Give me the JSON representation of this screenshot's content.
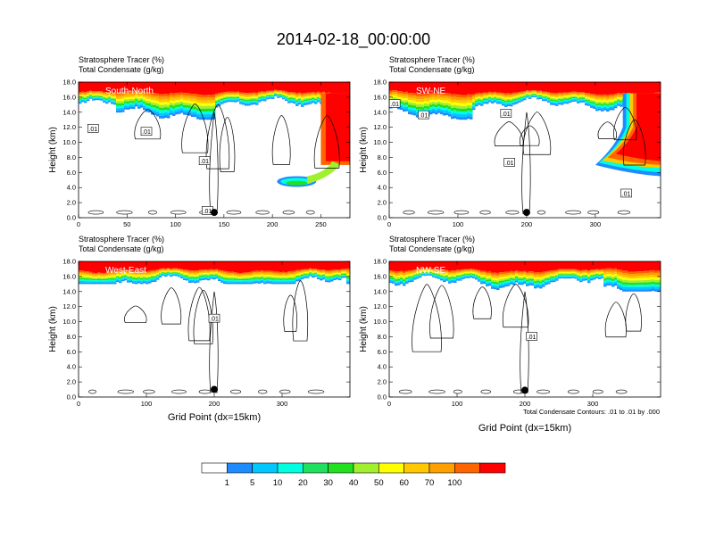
{
  "figure": {
    "title": "2014-02-18_00:00:00",
    "contour_note": "Total Condensate Contours: .01 to .01 by .000",
    "colorbar": {
      "labels": [
        "1",
        "5",
        "10",
        "20",
        "30",
        "40",
        "50",
        "60",
        "70",
        "100"
      ],
      "colors": [
        "#ffffff",
        "#1e8cff",
        "#00c8ff",
        "#00ffe0",
        "#20e060",
        "#20e020",
        "#a0f030",
        "#ffff00",
        "#ffc800",
        "#ffa000",
        "#ff6400",
        "#ff0000"
      ]
    }
  },
  "chart_data": [
    {
      "type": "heatmap",
      "panel_label": "South-North",
      "header_line1": "Stratosphere Tracer   (%)",
      "header_line2": "Total Condensate   (g/kg)",
      "ylabel": "Height (km)",
      "xlabel": "",
      "xlim": [
        0,
        280
      ],
      "ylim": [
        0,
        18
      ],
      "xticks": [
        "0",
        "50",
        "100",
        "150",
        "200",
        "250"
      ],
      "xtick_values": [
        0,
        50,
        100,
        150,
        200,
        250
      ],
      "yticks": [
        "0.0",
        "2.0",
        "4.0",
        "6.0",
        "8.0",
        "10.0",
        "12.0",
        "14.0",
        "16.0",
        "18.0"
      ],
      "marker": {
        "x": 140,
        "y": 0.7
      },
      "contour_labels": [
        {
          "text": ".01",
          "x": 15,
          "y": 11.8
        },
        {
          "text": ".01",
          "x": 70,
          "y": 11.4
        },
        {
          "text": ".01",
          "x": 130,
          "y": 7.5
        },
        {
          "text": ".01",
          "x": 133,
          "y": 0.9
        }
      ],
      "tracer_band": {
        "top": 18,
        "red_bottom": 16.6,
        "bottom_min": 13.0
      }
    },
    {
      "type": "heatmap",
      "panel_label": "SW-NE",
      "header_line1": "Stratosphere Tracer   (%)",
      "header_line2": "Total Condensate   (g/kg)",
      "ylabel": "Height (km)",
      "xlabel": "",
      "xlim": [
        0,
        395
      ],
      "ylim": [
        0,
        18
      ],
      "xticks": [
        "0",
        "100",
        "200",
        "300"
      ],
      "xtick_values": [
        0,
        100,
        200,
        300
      ],
      "yticks": [
        "0.0",
        "2.0",
        "4.0",
        "6.0",
        "8.0",
        "10.0",
        "12.0",
        "14.0",
        "16.0",
        "18.0"
      ],
      "marker": {
        "x": 200,
        "y": 0.7
      },
      "contour_labels": [
        {
          "text": ".01",
          "x": 8,
          "y": 15.1
        },
        {
          "text": ".01",
          "x": 50,
          "y": 13.6
        },
        {
          "text": ".01",
          "x": 170,
          "y": 13.8
        },
        {
          "text": ".01",
          "x": 175,
          "y": 7.3
        },
        {
          "text": ".01",
          "x": 345,
          "y": 3.2
        }
      ],
      "tracer_band": {
        "top": 18,
        "red_bottom": 16.6,
        "bottom_min": 13.0
      }
    },
    {
      "type": "heatmap",
      "panel_label": "West-East",
      "header_line1": "Stratosphere Tracer   (%)",
      "header_line2": "Total Condensate   (g/kg)",
      "ylabel": "Height (km)",
      "xlabel": "Grid Point (dx=15km)",
      "xlim": [
        0,
        400
      ],
      "ylim": [
        0,
        18
      ],
      "xticks": [
        "0",
        "100",
        "200",
        "300"
      ],
      "xtick_values": [
        0,
        100,
        200,
        300
      ],
      "yticks": [
        "0.0",
        "2.0",
        "4.0",
        "6.0",
        "8.0",
        "10.0",
        "12.0",
        "14.0",
        "16.0",
        "18.0"
      ],
      "marker": {
        "x": 200,
        "y": 1.0
      },
      "contour_labels": [
        {
          "text": ".01",
          "x": 200,
          "y": 10.4
        }
      ],
      "tracer_band": {
        "top": 18,
        "red_bottom": 16.8,
        "bottom_min": 15.0
      }
    },
    {
      "type": "heatmap",
      "panel_label": "NW-SE",
      "header_line1": "Stratosphere Tracer   (%)",
      "header_line2": "Total Condensate   (g/kg)",
      "ylabel": "Height (km)",
      "xlabel": "Grid Point (dx=15km)",
      "xlim": [
        0,
        400
      ],
      "ylim": [
        0,
        18
      ],
      "xticks": [
        "0",
        "100",
        "200",
        "300"
      ],
      "xtick_values": [
        0,
        100,
        200,
        300
      ],
      "yticks": [
        "0.0",
        "2.0",
        "4.0",
        "6.0",
        "8.0",
        "10.0",
        "12.0",
        "14.0",
        "16.0",
        "18.0"
      ],
      "marker": {
        "x": 200,
        "y": 0.9
      },
      "contour_labels": [
        {
          "text": ".01",
          "x": 210,
          "y": 8.0
        }
      ],
      "tracer_band": {
        "top": 18,
        "red_bottom": 16.8,
        "bottom_min": 14.0
      }
    }
  ]
}
